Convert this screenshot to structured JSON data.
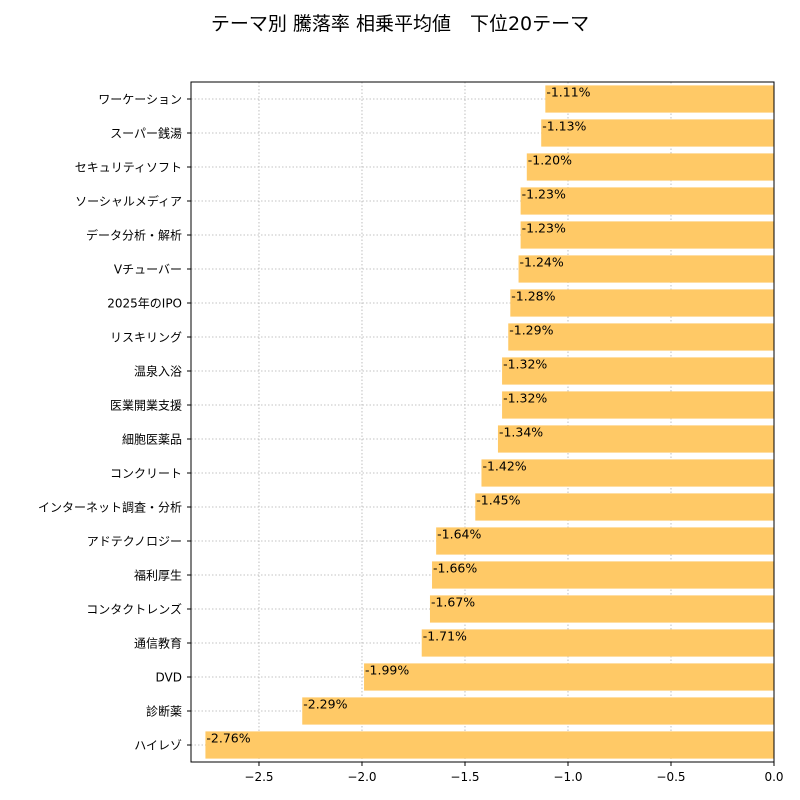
{
  "chart_data": {
    "type": "bar",
    "orientation": "horizontal",
    "title": "テーマ別 騰落率 相乗平均値　下位20テーマ",
    "xlabel": "",
    "ylabel": "",
    "xlim": [
      -2.83,
      0.0
    ],
    "xticks": [
      -2.5,
      -2.0,
      -1.5,
      -1.0,
      -0.5,
      0.0
    ],
    "xtick_labels": [
      "−2.5",
      "−2.0",
      "−1.5",
      "−1.0",
      "−0.5",
      "0.0"
    ],
    "grid": true,
    "bar_color": "#ffc966",
    "categories": [
      "ワーケーション",
      "スーパー銭湯",
      "セキュリティソフト",
      "ソーシャルメディア",
      "データ分析・解析",
      "Vチューバー",
      "2025年のIPO",
      "リスキリング",
      "温泉入浴",
      "医業開業支援",
      "細胞医薬品",
      "コンクリート",
      "インターネット調査・分析",
      "アドテクノロジー",
      "福利厚生",
      "コンタクトレンズ",
      "通信教育",
      "DVD",
      "診断薬",
      "ハイレゾ"
    ],
    "values": [
      -1.11,
      -1.13,
      -1.2,
      -1.23,
      -1.23,
      -1.24,
      -1.28,
      -1.29,
      -1.32,
      -1.32,
      -1.34,
      -1.42,
      -1.45,
      -1.64,
      -1.66,
      -1.67,
      -1.71,
      -1.99,
      -2.29,
      -2.76
    ],
    "data_labels": [
      "-1.11%",
      "-1.13%",
      "-1.20%",
      "-1.23%",
      "-1.23%",
      "-1.24%",
      "-1.28%",
      "-1.29%",
      "-1.32%",
      "-1.32%",
      "-1.34%",
      "-1.42%",
      "-1.45%",
      "-1.64%",
      "-1.66%",
      "-1.67%",
      "-1.71%",
      "-1.99%",
      "-2.29%",
      "-2.76%"
    ]
  }
}
